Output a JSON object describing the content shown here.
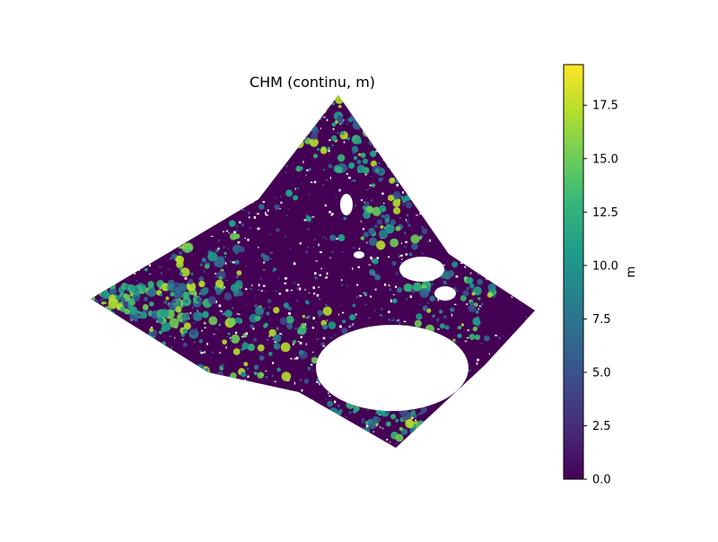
{
  "chart_data": {
    "type": "heatmap",
    "title": "CHM (continu, m)",
    "colormap": "viridis",
    "colorbar": {
      "label": "m",
      "min": 0.0,
      "max": 19.4,
      "ticks": [
        0.0,
        2.5,
        5.0,
        7.5,
        10.0,
        12.5,
        15.0,
        17.5
      ],
      "tick_labels": [
        "0.0",
        "2.5",
        "5.0",
        "7.5",
        "10.0",
        "12.5",
        "15.0",
        "17.5"
      ],
      "stops": [
        "#440154",
        "#482878",
        "#3e4989",
        "#31688e",
        "#26828e",
        "#1f9e89",
        "#35b779",
        "#6ece58",
        "#b5de2b",
        "#fde725"
      ]
    },
    "axes_visible": false,
    "legend": "colorbar-right",
    "nodata_color": "#ffffff",
    "background_class_color": "#440154",
    "tree_canopy_colors": [
      "#3e4989",
      "#31688e",
      "#26828e",
      "#1f9e89",
      "#35b779",
      "#6ece58",
      "#b5de2b"
    ]
  }
}
